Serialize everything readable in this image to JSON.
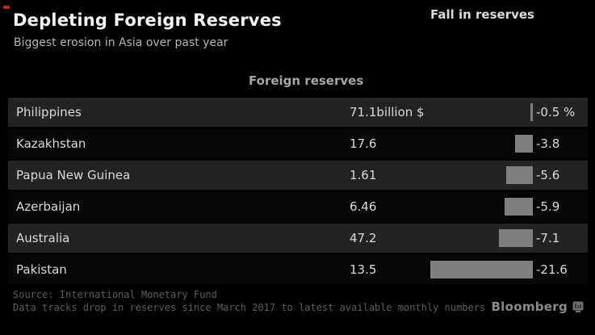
{
  "page": {
    "background": "#000000",
    "accent_red": "#c1210f",
    "bar_color": "#7f7f7f"
  },
  "header": {
    "title": "Depleting Foreign Reserves",
    "subtitle": "Biggest erosion in Asia over past year"
  },
  "table": {
    "col_reserves": "Foreign reserves",
    "col_fall": "Fall in reserves",
    "rows": [
      {
        "country": "Philippines",
        "reserve": "71.1billion $",
        "fall_label": "-0.5 %",
        "fall_value": 0.5
      },
      {
        "country": "Kazakhstan",
        "reserve": "17.6",
        "fall_label": "-3.8",
        "fall_value": 3.8
      },
      {
        "country": "Papua New Guinea",
        "reserve": "1.61",
        "fall_label": "-5.6",
        "fall_value": 5.6
      },
      {
        "country": "Azerbaijan",
        "reserve": "6.46",
        "fall_label": "-5.9",
        "fall_value": 5.9
      },
      {
        "country": "Australia",
        "reserve": "47.2",
        "fall_label": "-7.1",
        "fall_value": 7.1
      },
      {
        "country": "Pakistan",
        "reserve": "13.5",
        "fall_label": "-21.6",
        "fall_value": 21.6
      }
    ]
  },
  "footer": {
    "source": "Source: International Monetary Fund",
    "note": "Data tracks drop in reserves since March 2017 to latest available monthly numbers",
    "brand": "Bloomberg"
  },
  "chart_data": {
    "type": "bar",
    "orientation": "horizontal",
    "title": "Depleting Foreign Reserves",
    "subtitle": "Biggest erosion in Asia over past year",
    "categories": [
      "Philippines",
      "Kazakhstan",
      "Papua New Guinea",
      "Azerbaijan",
      "Australia",
      "Pakistan"
    ],
    "series": [
      {
        "name": "Foreign reserves (billion $)",
        "values": [
          71.1,
          17.6,
          1.61,
          6.46,
          47.2,
          13.5
        ]
      },
      {
        "name": "Fall in reserves (%)",
        "values": [
          -0.5,
          -3.8,
          -5.6,
          -5.9,
          -7.1,
          -21.6
        ]
      }
    ],
    "bar_color": "#7f7f7f",
    "grid": false,
    "legend_position": "none",
    "source": "International Monetary Fund"
  }
}
